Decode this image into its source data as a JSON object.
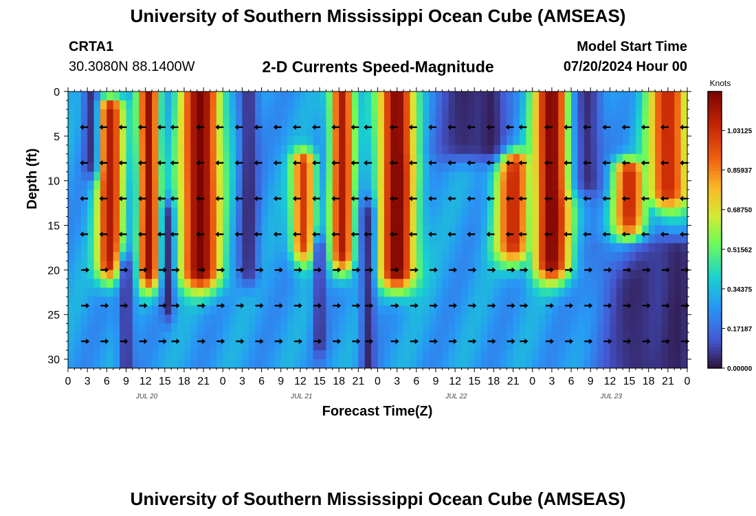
{
  "header": {
    "title": "University of Southern Mississippi Ocean Cube (AMSEAS)",
    "station_id": "CRTA1",
    "coords": "30.3080N  88.1400W",
    "subtitle": "2-D Currents Speed-Magnitude",
    "model_start_label": "Model Start Time",
    "model_start_value": "07/20/2024 Hour 00"
  },
  "footer": {
    "title": "University of Southern Mississippi Ocean Cube (AMSEAS)"
  },
  "colorbar": {
    "unit": "Knots",
    "ticks": [
      "1.03125",
      "0.85937",
      "0.68750",
      "0.51562",
      "0.34375",
      "0.17187",
      "0.00000"
    ],
    "tick_values": [
      1.03125,
      0.859375,
      0.6875,
      0.515625,
      0.34375,
      0.171875,
      0.0
    ],
    "vmin": 0,
    "vmax": 1.2
  },
  "chart_data": {
    "type": "heatmap",
    "title": "2-D Currents Speed-Magnitude",
    "xlabel": "Forecast Time(Z)",
    "ylabel": "Depth (ft)",
    "x_ticks": [
      "0",
      "3",
      "6",
      "9",
      "12",
      "15",
      "18",
      "21",
      "0",
      "3",
      "6",
      "9",
      "12",
      "15",
      "18",
      "21",
      "0",
      "3",
      "6",
      "9",
      "12",
      "15",
      "18",
      "21",
      "0",
      "3",
      "6",
      "9",
      "12",
      "15",
      "18",
      "21",
      "0"
    ],
    "x_range_hours": [
      0,
      96
    ],
    "day_labels": [
      "JUL 20",
      "JUL 21",
      "JUL 22",
      "JUL 23"
    ],
    "day_label_hours": [
      9,
      33,
      57,
      81
    ],
    "y_ticks": [
      "0",
      "5",
      "10",
      "15",
      "20",
      "25",
      "30"
    ],
    "y_tick_values": [
      0,
      5,
      10,
      15,
      20,
      25,
      30
    ],
    "y_range_ft": [
      0,
      31
    ],
    "arrow_depths_ft": [
      4,
      8,
      12,
      16,
      20,
      24,
      28
    ],
    "arrow_hours": [
      3,
      6,
      9,
      12,
      15,
      17,
      21,
      24,
      27,
      30,
      33,
      36,
      39,
      42,
      45,
      47,
      51,
      54,
      57,
      60,
      63,
      66,
      69,
      71,
      75,
      78,
      81,
      84,
      87,
      90,
      93,
      96
    ],
    "arrow_direction_rows": [
      "LLLLLLLLLLLLLLLLLLLLLLLLLLLLLLLL",
      "LLLLLLLLLLLLLLLLLLLLLLLLLLLLLLLL",
      "LLLLLLLLLLLLLLLLLLLLLLLLLLLLLLLL",
      "LLLLLLLLLLLLLLLLLLLLLLLLLLLLLLLL",
      "RRRRRRRRRRRRRRRRRRRRRRRRRRRRRRRR",
      "RRRRRRRRRRRRRRRRRRRRRRRRRRRRRRRR",
      "RRRRRRRRRRRRRRRRRRRRRRRRRRRRRRRR"
    ],
    "speed_features": [
      {
        "hour": 6.5,
        "top_ft": 2,
        "bottom_ft": 19,
        "half_width_h": 2.3,
        "peak_knots": 1.1
      },
      {
        "hour": 12.5,
        "top_ft": 0,
        "bottom_ft": 20,
        "half_width_h": 1.8,
        "peak_knots": 1.15
      },
      {
        "hour": 20.5,
        "top_ft": 0,
        "bottom_ft": 20,
        "half_width_h": 3.5,
        "peak_knots": 1.2
      },
      {
        "hour": 36.5,
        "top_ft": 8,
        "bottom_ft": 17,
        "half_width_h": 2.0,
        "peak_knots": 1.0
      },
      {
        "hour": 42.5,
        "top_ft": 0,
        "bottom_ft": 18,
        "half_width_h": 2.0,
        "peak_knots": 1.1
      },
      {
        "hour": 51.0,
        "top_ft": 0,
        "bottom_ft": 20,
        "half_width_h": 3.2,
        "peak_knots": 1.2
      },
      {
        "hour": 69.0,
        "top_ft": 8,
        "bottom_ft": 17,
        "half_width_h": 3.0,
        "peak_knots": 1.05
      },
      {
        "hour": 75.0,
        "top_ft": 0,
        "bottom_ft": 19,
        "half_width_h": 3.2,
        "peak_knots": 1.2
      },
      {
        "hour": 87.0,
        "top_ft": 9,
        "bottom_ft": 17,
        "half_width_h": 2.8,
        "peak_knots": 1.05
      },
      {
        "hour": 93.0,
        "top_ft": 0,
        "bottom_ft": 11,
        "half_width_h": 3.5,
        "peak_knots": 1.05
      }
    ],
    "low_features": [
      {
        "hour": 3.5,
        "top_ft": 0,
        "bottom_ft": 8,
        "half_width_h": 1.3
      },
      {
        "hour": 9.0,
        "top_ft": 20,
        "bottom_ft": 31,
        "half_width_h": 1.2
      },
      {
        "hour": 15.5,
        "top_ft": 14,
        "bottom_ft": 24,
        "half_width_h": 0.9
      },
      {
        "hour": 28.0,
        "top_ft": 0,
        "bottom_ft": 20,
        "half_width_h": 1.6
      },
      {
        "hour": 39.0,
        "top_ft": 18,
        "bottom_ft": 28,
        "half_width_h": 1.0
      },
      {
        "hour": 46.5,
        "top_ft": 14,
        "bottom_ft": 31,
        "half_width_h": 1.2
      },
      {
        "hour": 61.5,
        "top_ft": 0,
        "bottom_ft": 6,
        "half_width_h": 5.0
      },
      {
        "hour": 65.5,
        "top_ft": 0,
        "bottom_ft": 6,
        "half_width_h": 2.2
      },
      {
        "hour": 80.5,
        "top_ft": 0,
        "bottom_ft": 10,
        "half_width_h": 2.5
      },
      {
        "hour": 88.0,
        "top_ft": 18,
        "bottom_ft": 31,
        "half_width_h": 6.0
      },
      {
        "hour": 94.5,
        "top_ft": 18,
        "bottom_ft": 31,
        "half_width_h": 3.5
      }
    ]
  }
}
